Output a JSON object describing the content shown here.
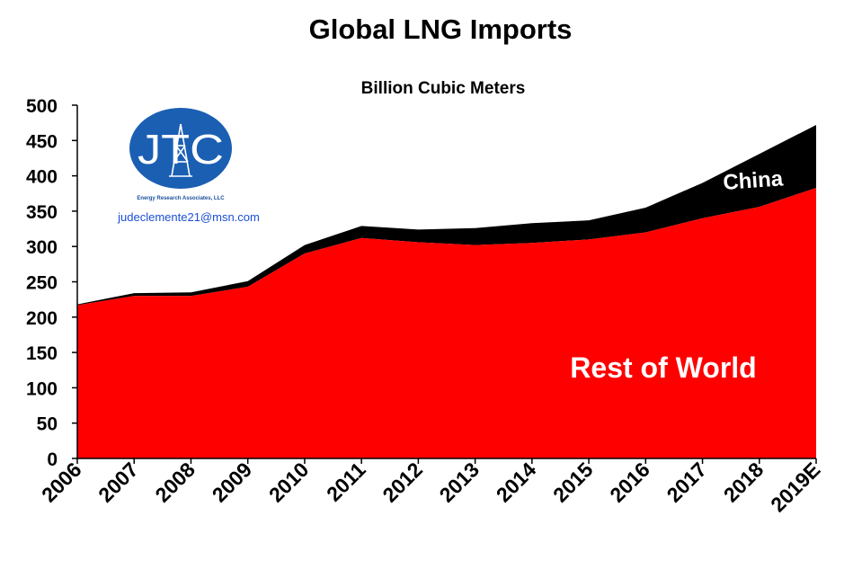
{
  "chart_data": {
    "type": "area",
    "stacked": true,
    "title": "Global LNG Imports",
    "subtitle": "Billion Cubic Meters",
    "categories": [
      "2006",
      "2007",
      "2008",
      "2009",
      "2010",
      "2011",
      "2012",
      "2013",
      "2014",
      "2015",
      "2016",
      "2017",
      "2018",
      "2019E"
    ],
    "series": [
      {
        "name": "Rest of World",
        "color": "#ff0000",
        "values": [
          217,
          230,
          230,
          243,
          290,
          312,
          306,
          302,
          305,
          310,
          320,
          340,
          356,
          383
        ]
      },
      {
        "name": "China",
        "color": "#000000",
        "values": [
          1,
          4,
          5,
          8,
          12,
          17,
          18,
          24,
          28,
          27,
          35,
          50,
          75,
          89
        ]
      }
    ],
    "ylim": [
      0,
      500
    ],
    "yticks": [
      0,
      50,
      100,
      150,
      200,
      250,
      300,
      350,
      400,
      450,
      500
    ],
    "grid": false,
    "legend": "none"
  },
  "logo": {
    "letters": "JTC",
    "company": "Energy Research Associates, LLC",
    "email": "judeclemente21@msn.com",
    "circle_color": "#1b5fb3"
  }
}
